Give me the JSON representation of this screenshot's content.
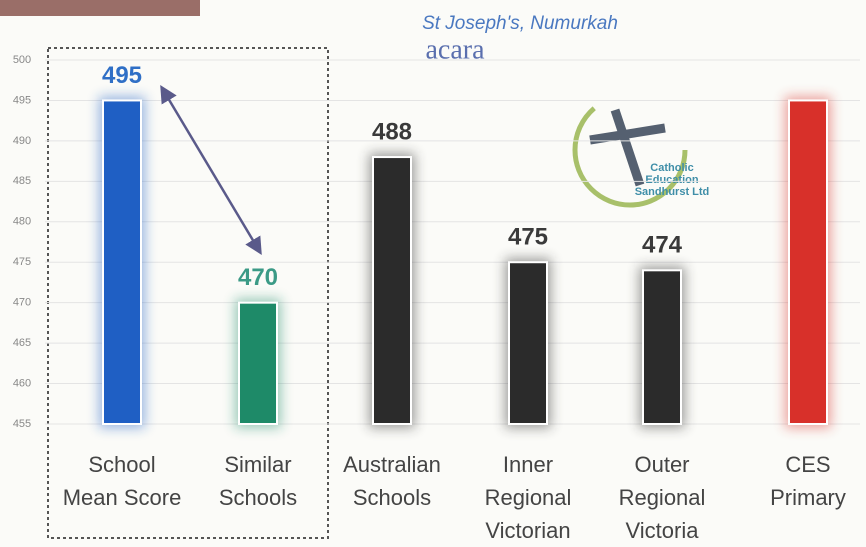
{
  "chart_data": {
    "type": "bar",
    "subtitle": "St Joseph's, Numurkah",
    "source_logo": "acara",
    "logo_text": [
      "Catholic",
      "Education",
      "Sandhurst Ltd"
    ],
    "categories": [
      "School Mean Score",
      "Similar Schools",
      "Australian Schools",
      "Inner Regional Victorian",
      "Outer Regional Victoria",
      "CES Primary"
    ],
    "values": [
      495,
      470,
      488,
      475,
      474,
      495
    ],
    "value_labels": [
      "495",
      "470",
      "488",
      "475",
      "474",
      null
    ],
    "colors": [
      "#1f5fc4",
      "#1e8a68",
      "#2b2b2b",
      "#2b2b2b",
      "#2b2b2b",
      "#d8302a"
    ],
    "label_colors": [
      "#2f6fc6",
      "#3b9a86",
      "#3a3a3a",
      "#3a3a3a",
      "#3a3a3a",
      "#3a3a3a"
    ],
    "ylim": [
      455,
      500
    ],
    "yticks": [
      455,
      460,
      465,
      470,
      475,
      480,
      485,
      490,
      495,
      500
    ],
    "grid": true
  }
}
